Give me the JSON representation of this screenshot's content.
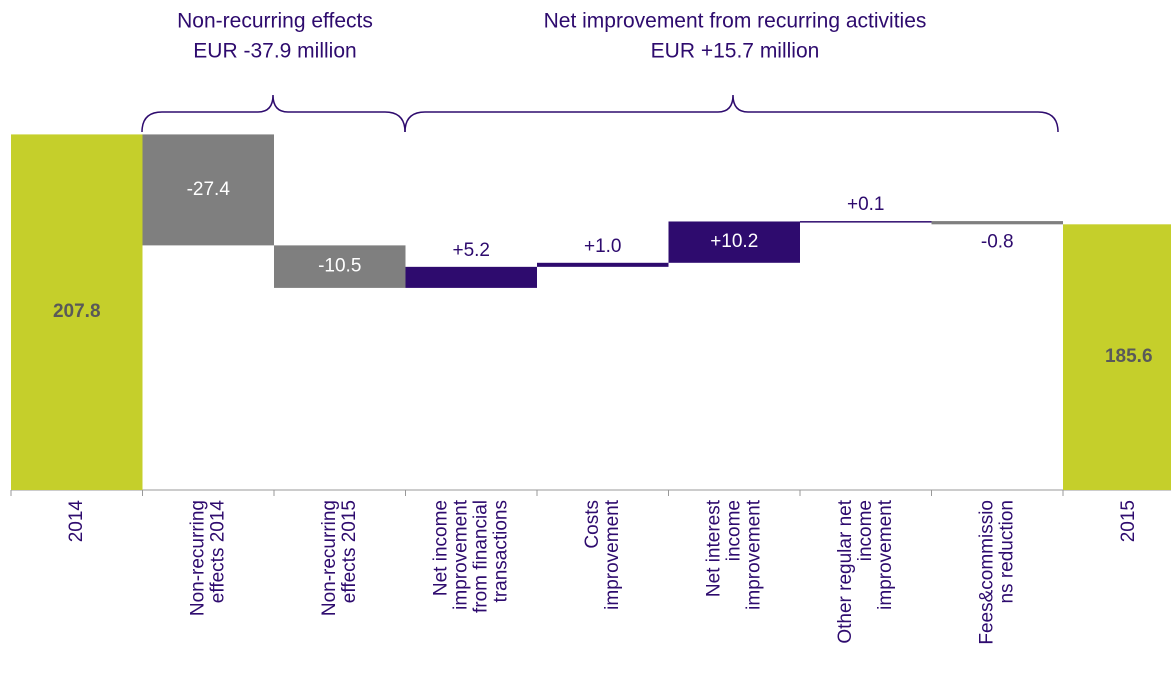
{
  "chart_data": {
    "type": "waterfall",
    "categories": [
      [
        "2014"
      ],
      [
        "Non-recurring",
        "effects 2014"
      ],
      [
        "Non-recurring",
        "effects 2015"
      ],
      [
        "Net income",
        "improvement",
        "from financial",
        "transactions"
      ],
      [
        "Costs",
        "improvement"
      ],
      [
        "Net interest",
        "income",
        "improvement"
      ],
      [
        "Other regular net",
        "income",
        "improvement"
      ],
      [
        "Fees&commissio",
        "ns reduction"
      ],
      [
        "2015"
      ]
    ],
    "values": [
      207.8,
      -27.4,
      -10.5,
      5.2,
      1.0,
      10.2,
      0.1,
      -0.8,
      185.6
    ],
    "value_labels": [
      "207.8",
      "-27.4",
      "-10.5",
      "+5.2",
      "+1.0",
      "+10.2",
      "+0.1",
      "-0.8",
      "185.6"
    ],
    "totals": [
      true,
      false,
      false,
      false,
      false,
      false,
      false,
      false,
      true
    ],
    "colors": [
      "#c5cf2b",
      "#7f7f7f",
      "#7f7f7f",
      "#2e0b6e",
      "#2e0b6e",
      "#2e0b6e",
      "#2e0b6e",
      "#7f7f7f",
      "#c5cf2b"
    ],
    "ylim": [
      120,
      210
    ],
    "annotations": [
      {
        "lines": [
          "Non-recurring effects",
          "EUR -37.9 million"
        ]
      },
      {
        "lines": [
          "Net improvement from recurring activities",
          "EUR +15.7 million"
        ]
      }
    ]
  }
}
